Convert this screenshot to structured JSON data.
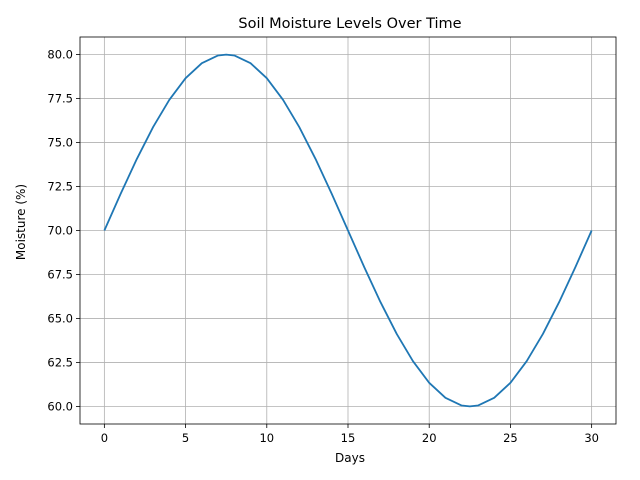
{
  "chart_data": {
    "type": "line",
    "title": "Soil Moisture Levels Over Time",
    "xlabel": "Days",
    "ylabel": "Moisture (%)",
    "xlim": [
      -1.5,
      31.5
    ],
    "ylim": [
      59.0,
      81.0
    ],
    "xticks": [
      0,
      5,
      10,
      15,
      20,
      25,
      30
    ],
    "yticks": [
      60.0,
      62.5,
      65.0,
      67.5,
      70.0,
      72.5,
      75.0,
      77.5,
      80.0
    ],
    "ytick_labels": [
      "60.0",
      "62.5",
      "65.0",
      "67.5",
      "70.0",
      "72.5",
      "75.0",
      "77.5",
      "80.0"
    ],
    "grid": true,
    "series": [
      {
        "color": "#1f77b4",
        "x": [
          0,
          1,
          2,
          3,
          4,
          5,
          6,
          7,
          7.5,
          8,
          9,
          10,
          11,
          12,
          13,
          14,
          15,
          16,
          17,
          18,
          19,
          20,
          21,
          22,
          22.5,
          23,
          24,
          25,
          26,
          27,
          28,
          29,
          30
        ],
        "y": [
          70.0,
          72.08,
          74.07,
          75.88,
          77.43,
          78.66,
          79.51,
          79.95,
          80.0,
          79.95,
          79.51,
          78.66,
          77.43,
          75.88,
          74.07,
          72.08,
          70.0,
          67.92,
          65.93,
          64.12,
          62.57,
          61.34,
          60.49,
          60.05,
          60.0,
          60.05,
          60.49,
          61.34,
          62.57,
          64.12,
          65.93,
          67.92,
          70.0
        ]
      }
    ]
  }
}
